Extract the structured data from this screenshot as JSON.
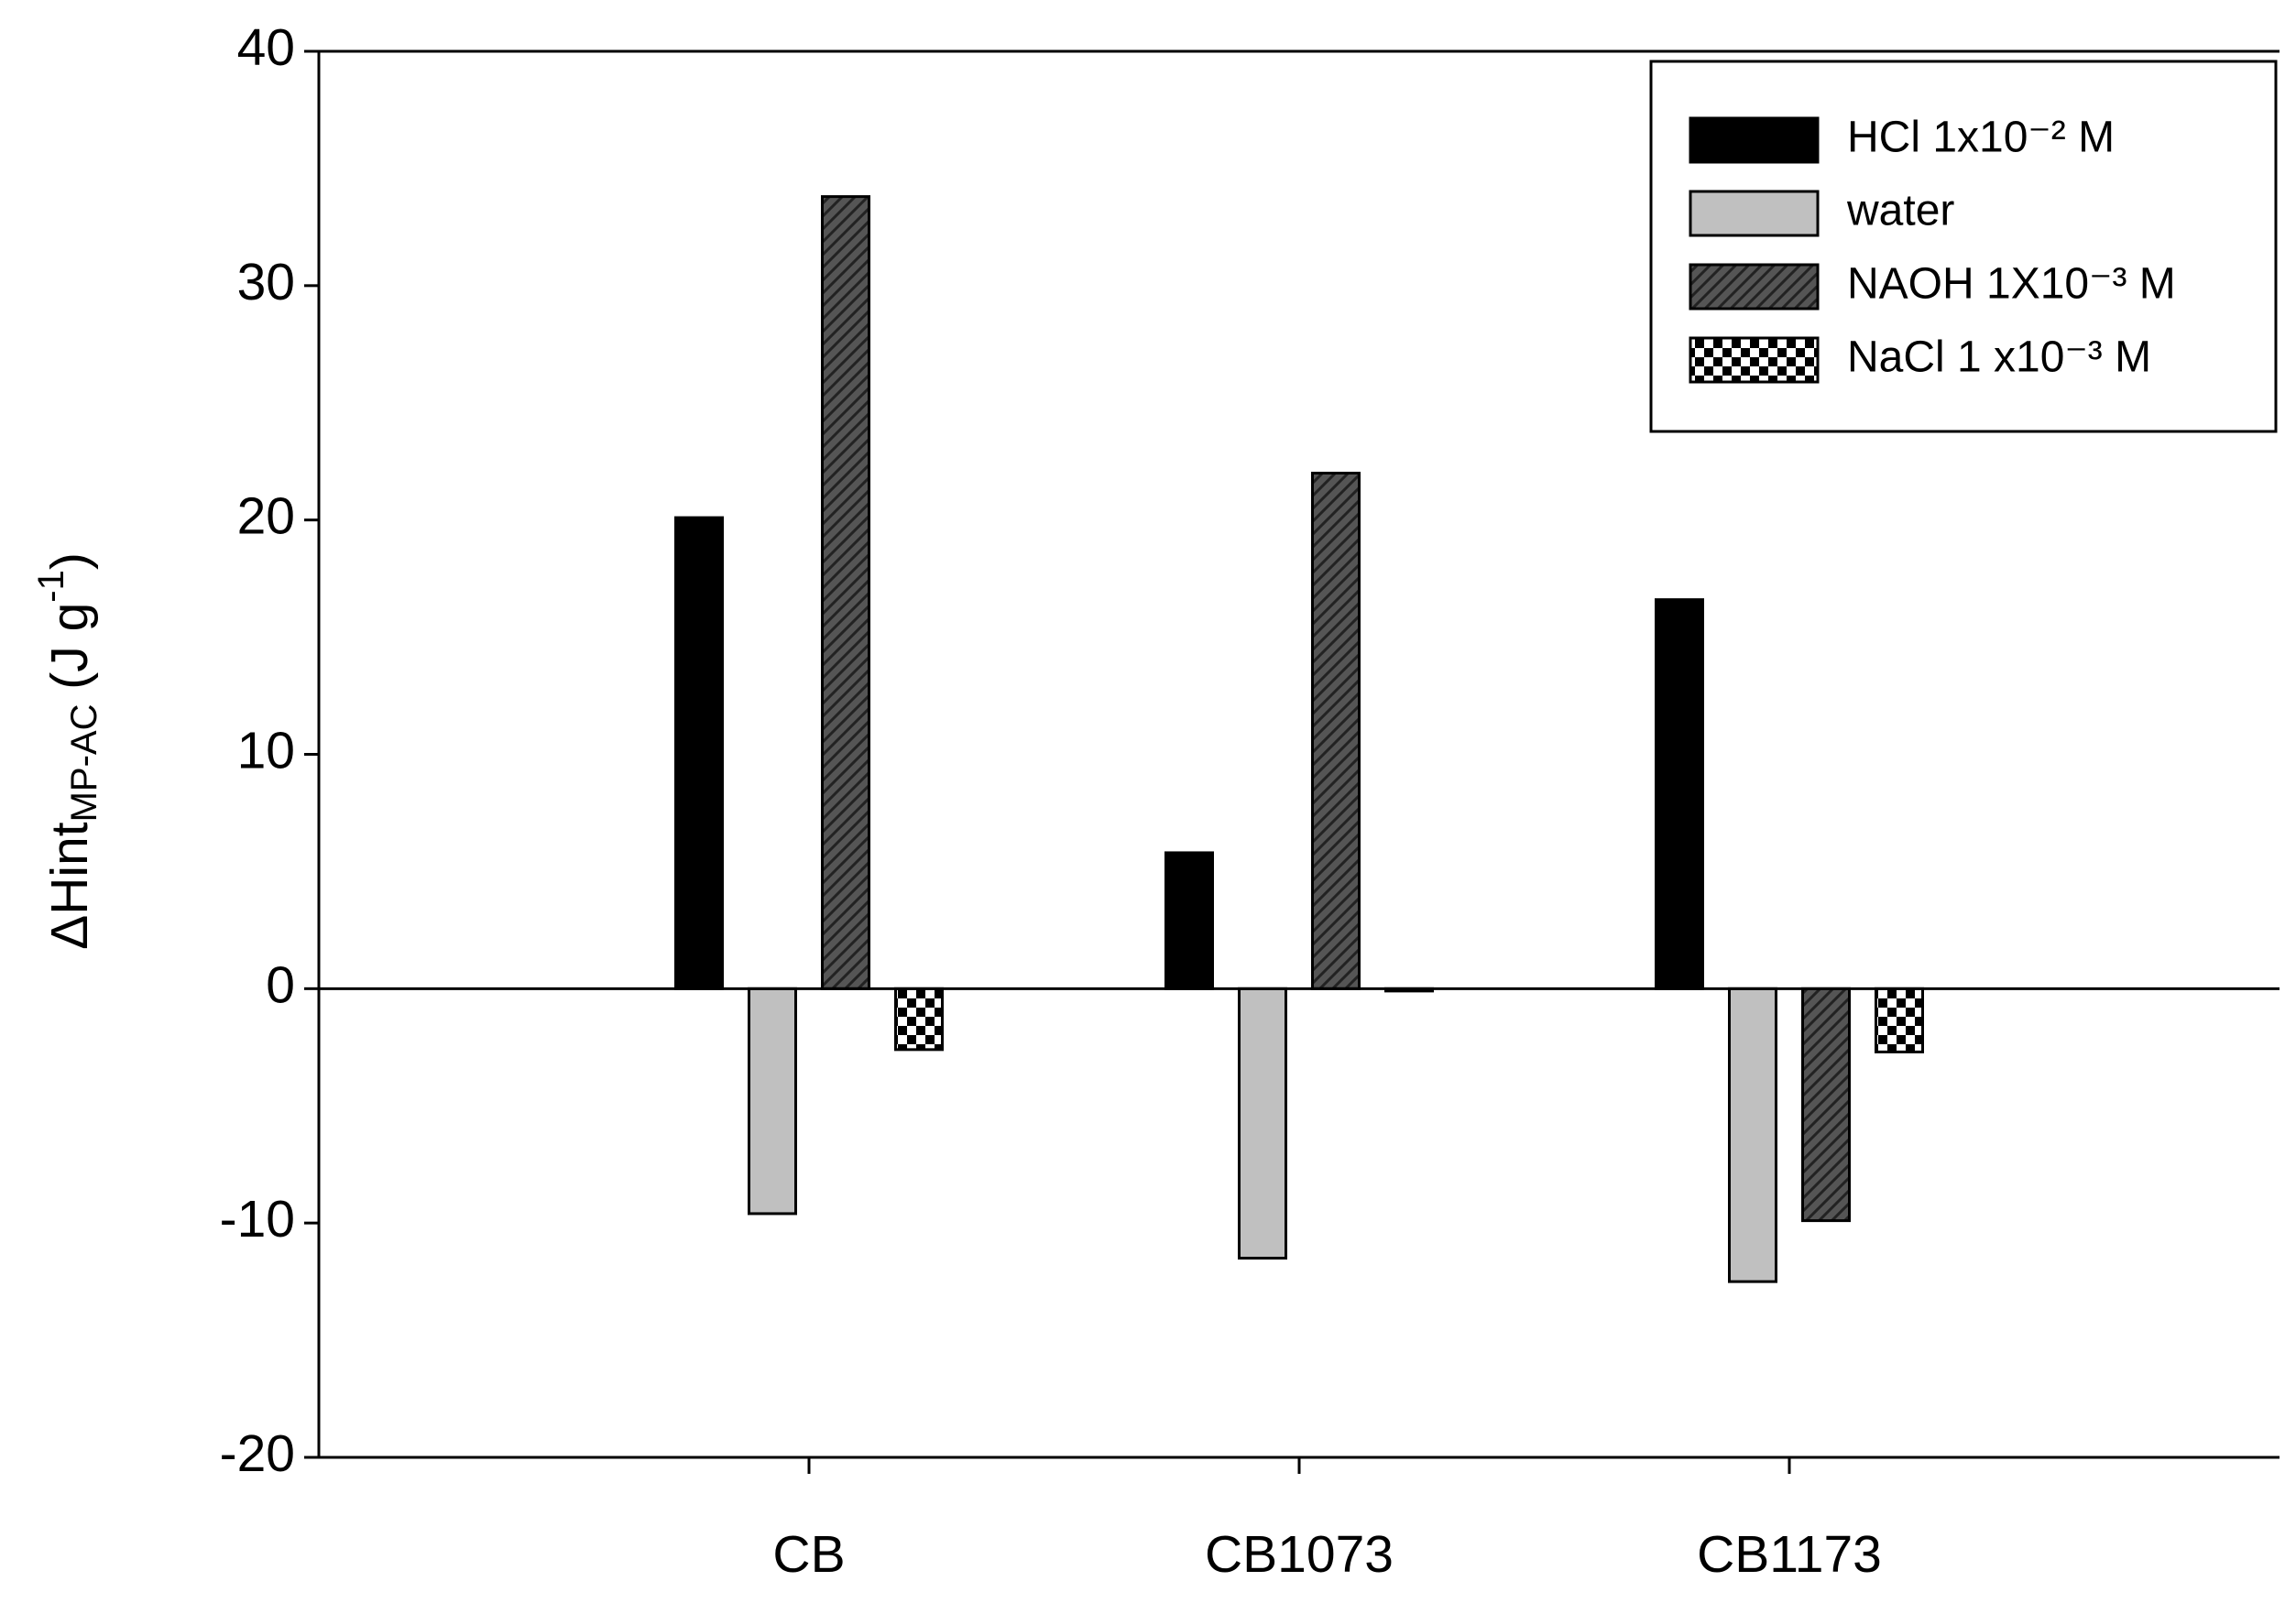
{
  "chart_data": {
    "type": "bar",
    "ylabel": {
      "main": "ΔHint",
      "sub": "MP-AC",
      "rest": " (J g",
      "sup": "-1",
      "end": ")"
    },
    "categories": [
      "CB",
      "CB1073",
      "CB1173"
    ],
    "series": [
      {
        "name": "HCl 1x10⁻² M",
        "color": "#000000",
        "values": [
          20.1,
          5.8,
          16.6
        ]
      },
      {
        "name": "water",
        "color": "#c0c0c0",
        "values": [
          -9.6,
          -11.5,
          -12.5
        ]
      },
      {
        "name": "NAOH 1X10⁻³ M",
        "color": "#555555",
        "pattern": "hatch",
        "values": [
          33.8,
          22.0,
          -9.9
        ]
      },
      {
        "name": "NaCl 1 x10⁻³ M",
        "color": "#000000",
        "pattern": "checker",
        "values": [
          -2.6,
          -0.1,
          -2.7
        ]
      }
    ],
    "ylim": [
      -20,
      40
    ],
    "yticks": [
      -20,
      -10,
      0,
      10,
      20,
      30,
      40
    ],
    "legend": "upper right"
  }
}
